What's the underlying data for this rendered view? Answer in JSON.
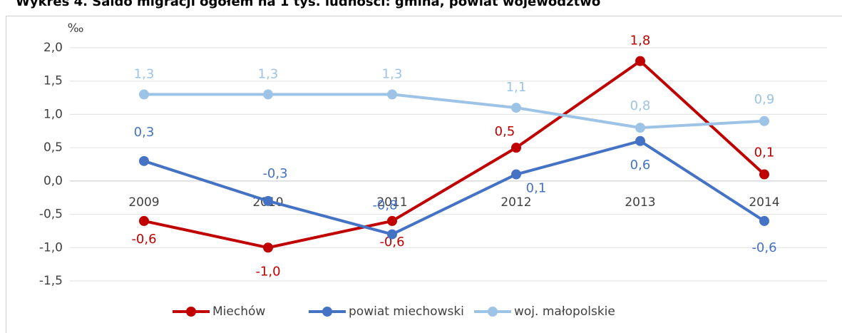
{
  "chart_data": {
    "type": "line",
    "title": "Wykres 4. Saldo migracji ogółem na 1 tys. ludności: gmina, powiat województwo",
    "y_axis_label": "‰",
    "categories": [
      "2009",
      "2010",
      "2011",
      "2012",
      "2013",
      "2014"
    ],
    "series": [
      {
        "name": "Miechów",
        "color": "#c00000",
        "values": [
          -0.6,
          -1.0,
          -0.6,
          0.5,
          1.8,
          0.1
        ],
        "value_labels": [
          "-0,6",
          "-1,0",
          "-0,6",
          "0,5",
          "1,8",
          "0,1"
        ]
      },
      {
        "name": "powiat miechowski",
        "color": "#4472c4",
        "values": [
          0.3,
          -0.3,
          -0.8,
          0.1,
          0.6,
          -0.6
        ],
        "value_labels": [
          "0,3",
          "-0,3",
          "-0,8",
          "0,1",
          "0,6",
          "-0,6"
        ]
      },
      {
        "name": "woj. małopolskie",
        "color": "#9dc3e6",
        "values": [
          1.3,
          1.3,
          1.3,
          1.1,
          0.8,
          0.9
        ],
        "value_labels": [
          "1,3",
          "1,3",
          "1,3",
          "1,1",
          "0,8",
          "0,9"
        ]
      }
    ],
    "ylim": [
      -1.5,
      2.0
    ],
    "yticks": [
      {
        "value": -1.5,
        "label": "-1,5"
      },
      {
        "value": -1.0,
        "label": "-1,0"
      },
      {
        "value": -0.5,
        "label": "-0,5"
      },
      {
        "value": 0,
        "label": "0,0"
      },
      {
        "value": 0.5,
        "label": "0,5"
      },
      {
        "value": 1.0,
        "label": "1,0"
      },
      {
        "value": 1.5,
        "label": "1,5"
      },
      {
        "value": 2.0,
        "label": "2,0"
      }
    ],
    "grid": true,
    "legend": "bottom"
  }
}
